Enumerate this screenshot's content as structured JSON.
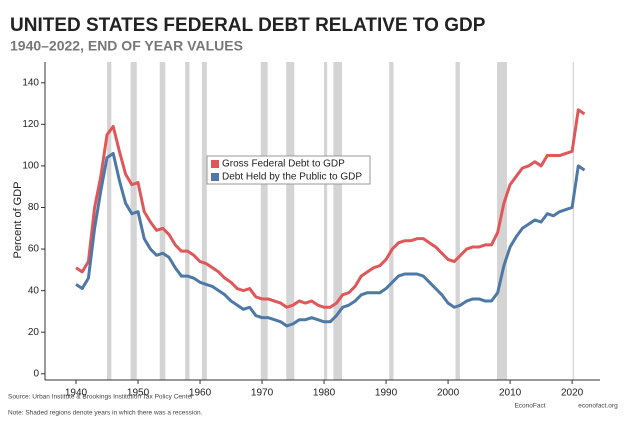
{
  "chart_data": {
    "type": "line",
    "title": "UNITED STATES FEDERAL DEBT RELATIVE TO GDP",
    "subtitle": "1940–2022, END OF YEAR VALUES",
    "y_label": "Percent of GDP",
    "source": "Source: Urban Institute & Brookings Institution Tax Policy Center",
    "note": "Note: Shaded regions denote years in which there was a recession.",
    "brand": "EconoFact",
    "site": "econofact.org",
    "x": [
      1940,
      1941,
      1942,
      1943,
      1944,
      1945,
      1946,
      1947,
      1948,
      1949,
      1950,
      1951,
      1952,
      1953,
      1954,
      1955,
      1956,
      1957,
      1958,
      1959,
      1960,
      1961,
      1962,
      1963,
      1964,
      1965,
      1966,
      1967,
      1968,
      1969,
      1970,
      1971,
      1972,
      1973,
      1974,
      1975,
      1976,
      1977,
      1978,
      1979,
      1980,
      1981,
      1982,
      1983,
      1984,
      1985,
      1986,
      1987,
      1988,
      1989,
      1990,
      1991,
      1992,
      1993,
      1994,
      1995,
      1996,
      1997,
      1998,
      1999,
      2000,
      2001,
      2002,
      2003,
      2004,
      2005,
      2006,
      2007,
      2008,
      2009,
      2010,
      2011,
      2012,
      2013,
      2014,
      2015,
      2016,
      2017,
      2018,
      2019,
      2020,
      2021,
      2022
    ],
    "series": [
      {
        "name": "Gross Federal Debt to GDP",
        "color": "#e0575a",
        "values": [
          51,
          49,
          54,
          80,
          95,
          115,
          119,
          107,
          96,
          91,
          92,
          78,
          73,
          69,
          70,
          67,
          62,
          59,
          59,
          57,
          54,
          53,
          51,
          49,
          46,
          44,
          41,
          40,
          41,
          37,
          36,
          36,
          35,
          34,
          32,
          33,
          35,
          34,
          35,
          33,
          32,
          32,
          34,
          38,
          39,
          42,
          47,
          49,
          51,
          52,
          55,
          60,
          63,
          64,
          64,
          65,
          65,
          63,
          61,
          58,
          55,
          54,
          57,
          60,
          61,
          61,
          62,
          62,
          68,
          82,
          91,
          95,
          99,
          100,
          102,
          100,
          105,
          105,
          105,
          106,
          107,
          127,
          125
        ]
      },
      {
        "name": "Debt Held by the Public to GDP",
        "color": "#4e79a7",
        "values": [
          43,
          41,
          46,
          70,
          88,
          104,
          106,
          93,
          82,
          77,
          78,
          65,
          60,
          57,
          58,
          56,
          51,
          47,
          47,
          46,
          44,
          43,
          42,
          40,
          38,
          35,
          33,
          31,
          32,
          28,
          27,
          27,
          26,
          25,
          23,
          24,
          26,
          26,
          27,
          26,
          25,
          25,
          28,
          32,
          33,
          35,
          38,
          39,
          39,
          39,
          41,
          44,
          47,
          48,
          48,
          48,
          47,
          44,
          41,
          38,
          34,
          32,
          33,
          35,
          36,
          36,
          35,
          35,
          39,
          52,
          61,
          66,
          70,
          72,
          74,
          73,
          77,
          76,
          78,
          79,
          80,
          100,
          98
        ]
      }
    ],
    "recessions": [
      [
        1945.0,
        1945.7
      ],
      [
        1948.8,
        1949.8
      ],
      [
        1953.5,
        1954.4
      ],
      [
        1957.6,
        1958.3
      ],
      [
        1960.3,
        1961.1
      ],
      [
        1969.8,
        1970.9
      ],
      [
        1973.9,
        1975.2
      ],
      [
        1980.0,
        1980.5
      ],
      [
        1981.5,
        1982.9
      ],
      [
        1990.5,
        1991.2
      ],
      [
        2001.2,
        2001.9
      ],
      [
        2007.9,
        2009.5
      ],
      [
        2020.1,
        2020.3
      ]
    ],
    "recession_color": "#d4d4d4",
    "xlim": [
      1935,
      2024.5
    ],
    "ylim": [
      -3,
      150
    ],
    "xticks": [
      1940,
      1950,
      1960,
      1970,
      1980,
      1990,
      2000,
      2010,
      2020
    ],
    "yticks": [
      0,
      20,
      40,
      60,
      80,
      100,
      120,
      140
    ]
  }
}
